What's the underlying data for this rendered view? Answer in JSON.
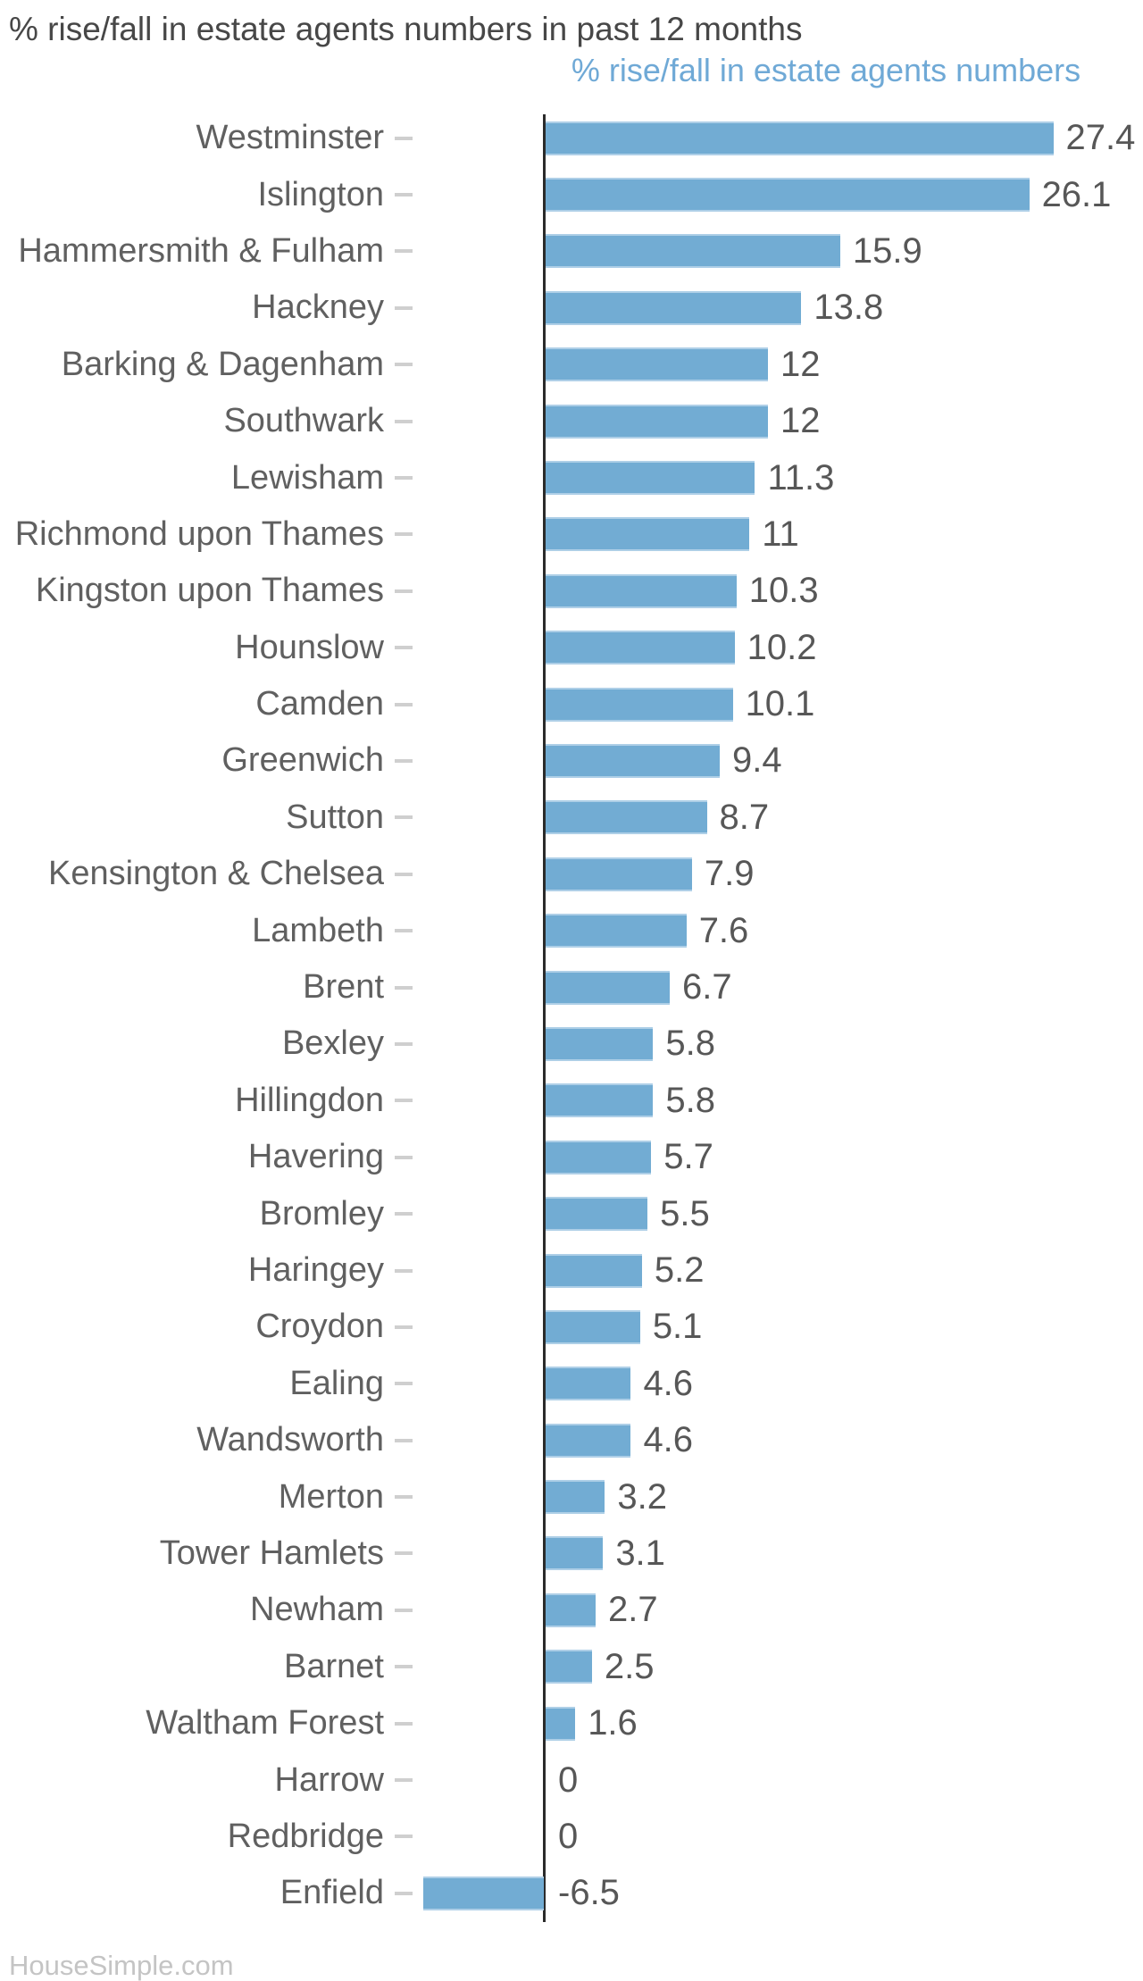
{
  "header": {
    "title": "% rise/fall in estate agents numbers in past 12 months"
  },
  "footer": {
    "brand": "HouseSimple.com"
  },
  "colors": {
    "bar": "#72ACD3",
    "bar_edge": "#AECFE7",
    "legend_text": "#6FA9D6",
    "title_text": "#474747",
    "category_text": "#606060",
    "value_text": "#575757",
    "tick": "#CFCFCF",
    "axis_line": "#2B2B2B",
    "background": "#FFFFFF"
  },
  "chart_data": {
    "type": "bar",
    "orientation": "horizontal",
    "title": "% rise/fall in estate agents numbers in past 12 months",
    "series_label": "% rise/fall in estate agents numbers",
    "legend_position": "top-center-over-plot",
    "grid": false,
    "xlim": [
      -6.5,
      27.4
    ],
    "xlabel": "",
    "ylabel": "",
    "categories": [
      "Westminster",
      "Islington",
      "Hammersmith & Fulham",
      "Hackney",
      "Barking & Dagenham",
      "Southwark",
      "Lewisham",
      "Richmond upon Thames",
      "Kingston upon Thames",
      "Hounslow",
      "Camden",
      "Greenwich",
      "Sutton",
      "Kensington & Chelsea",
      "Lambeth",
      "Brent",
      "Bexley",
      "Hillingdon",
      "Havering",
      "Bromley",
      "Haringey",
      "Croydon",
      "Ealing",
      "Wandsworth",
      "Merton",
      "Tower Hamlets",
      "Newham",
      "Barnet",
      "Waltham Forest",
      "Harrow",
      "Redbridge",
      "Enfield"
    ],
    "values": [
      27.4,
      26.1,
      15.9,
      13.8,
      12,
      12,
      11.3,
      11,
      10.3,
      10.2,
      10.1,
      9.4,
      8.7,
      7.9,
      7.6,
      6.7,
      5.8,
      5.8,
      5.7,
      5.5,
      5.2,
      5.1,
      4.6,
      4.6,
      3.2,
      3.1,
      2.7,
      2.5,
      1.6,
      0,
      0,
      -6.5
    ],
    "value_labels": [
      "27.4",
      "26.1",
      "15.9",
      "13.8",
      "12",
      "12",
      "11.3",
      "11",
      "10.3",
      "10.2",
      "10.1",
      "9.4",
      "8.7",
      "7.9",
      "7.6",
      "6.7",
      "5.8",
      "5.8",
      "5.7",
      "5.5",
      "5.2",
      "5.1",
      "4.6",
      "4.6",
      "3.2",
      "3.1",
      "2.7",
      "2.5",
      "1.6",
      "0",
      "0",
      "-6.5"
    ]
  }
}
